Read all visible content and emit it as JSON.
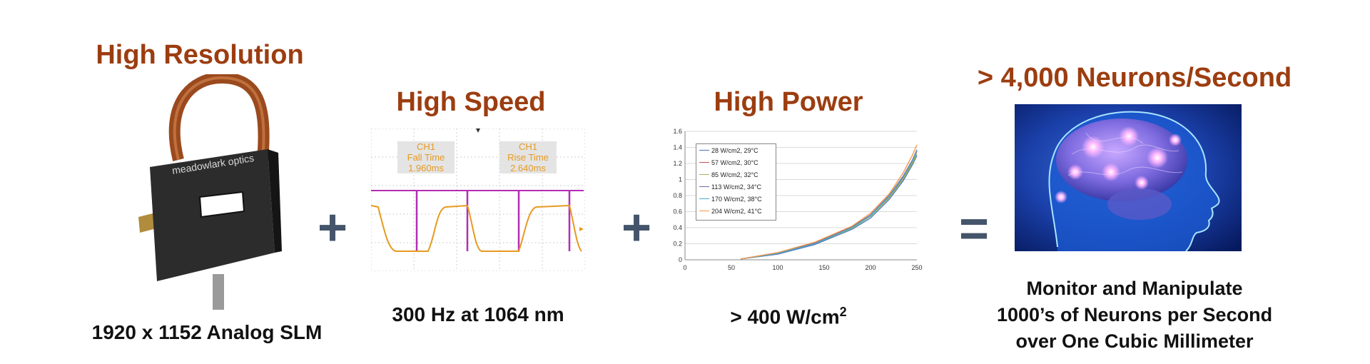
{
  "panels": {
    "resolution": {
      "heading": "High Resolution",
      "caption": "1920 x 1152 Analog SLM",
      "device_brand": "meadowlark optics"
    },
    "speed": {
      "heading": "High Speed",
      "caption": "300 Hz at 1064 nm",
      "fall_label": {
        "ch": "CH1",
        "name": "Fall Time",
        "value": "1.960ms"
      },
      "rise_label": {
        "ch": "CH1",
        "name": "Rise Time",
        "value": "2.640ms"
      }
    },
    "power": {
      "heading": "High Power",
      "caption_prefix": "> 400 W/cm",
      "caption_sup": "2"
    },
    "neurons": {
      "heading": "> 4,000 Neurons/Second",
      "caption_lines": [
        "Monitor and Manipulate",
        "1000’s of Neurons per Second",
        "over One Cubic Millimeter"
      ]
    }
  },
  "operators": {
    "plus1": "+",
    "plus2": "+",
    "equals": "="
  },
  "colors": {
    "heading": "#9c3d10",
    "operator": "#44546a",
    "scope_trace": "#e79a1f",
    "scope_marker": "#b42db4"
  },
  "chart_data": {
    "type": "line",
    "title": "",
    "xlabel": "",
    "ylabel": "",
    "xlim": [
      0,
      250
    ],
    "ylim": [
      0,
      1.6
    ],
    "xticks": [
      0,
      50,
      100,
      150,
      200,
      250
    ],
    "yticks": [
      0,
      0.2,
      0.4,
      0.6,
      0.8,
      1,
      1.2,
      1.4,
      1.6
    ],
    "grid": true,
    "legend_position": "top-left",
    "series": [
      {
        "name": "28 W/cm2, 29°C",
        "color": "#4472c4",
        "x": [
          60,
          100,
          140,
          180,
          200,
          220,
          235,
          245,
          250
        ],
        "y": [
          0.01,
          0.07,
          0.19,
          0.38,
          0.52,
          0.75,
          0.98,
          1.18,
          1.3
        ]
      },
      {
        "name": "57 W/cm2, 30°C",
        "color": "#c0504d",
        "x": [
          60,
          100,
          140,
          180,
          200,
          220,
          235,
          245,
          250
        ],
        "y": [
          0.01,
          0.08,
          0.2,
          0.4,
          0.55,
          0.78,
          1.02,
          1.22,
          1.35
        ]
      },
      {
        "name": "85 W/cm2, 32°C",
        "color": "#9bbb59",
        "x": [
          60,
          100,
          140,
          180,
          200,
          220,
          235,
          245,
          250
        ],
        "y": [
          0.01,
          0.08,
          0.2,
          0.39,
          0.54,
          0.77,
          1.0,
          1.2,
          1.32
        ]
      },
      {
        "name": "113 W/cm2, 34°C",
        "color": "#7f63a8",
        "x": [
          60,
          100,
          140,
          180,
          200,
          220,
          235,
          245,
          250
        ],
        "y": [
          0.01,
          0.09,
          0.21,
          0.41,
          0.56,
          0.8,
          1.04,
          1.24,
          1.37
        ]
      },
      {
        "name": "170 W/cm2, 38°C",
        "color": "#4bacc6",
        "x": [
          60,
          100,
          140,
          180,
          200,
          220,
          235,
          245,
          250
        ],
        "y": [
          0.01,
          0.08,
          0.2,
          0.4,
          0.55,
          0.79,
          1.03,
          1.23,
          1.36
        ]
      },
      {
        "name": "204 W/cm2, 41°C",
        "color": "#f79646",
        "x": [
          60,
          100,
          140,
          180,
          200,
          220,
          235,
          245,
          250
        ],
        "y": [
          0.01,
          0.09,
          0.22,
          0.42,
          0.58,
          0.82,
          1.08,
          1.3,
          1.43
        ]
      }
    ]
  }
}
